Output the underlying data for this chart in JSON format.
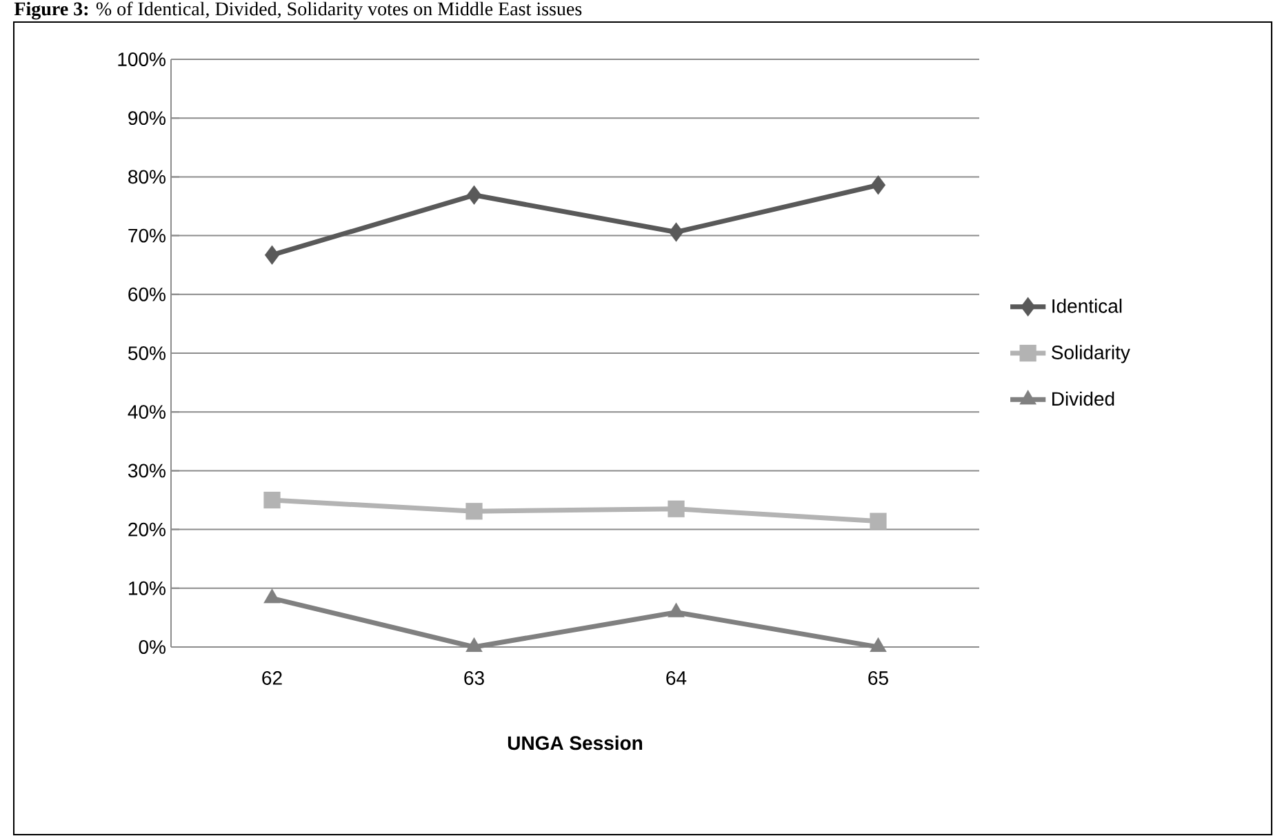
{
  "chart_data": {
    "type": "line",
    "title": "**Figure 3:** % of Identical, Divided, Solidarity votes on Middle East issues",
    "xlabel": "UNGA Session",
    "categories": [
      "62",
      "63",
      "64",
      "65"
    ],
    "series": [
      {
        "name": "Identical",
        "color": "#595959",
        "marker": "diamond",
        "values": [
          66.7,
          76.9,
          70.6,
          78.6
        ]
      },
      {
        "name": "Solidarity",
        "color": "#b3b3b3",
        "marker": "square",
        "values": [
          25.0,
          23.1,
          23.5,
          21.4
        ]
      },
      {
        "name": "Divided",
        "color": "#808080",
        "marker": "triangle",
        "values": [
          8.3,
          0,
          5.9,
          0
        ]
      }
    ],
    "ylim": [
      0,
      100
    ],
    "yticks": [
      {
        "value": 0,
        "label": "0%"
      },
      {
        "value": 10,
        "label": "10%"
      },
      {
        "value": 20,
        "label": "20%"
      },
      {
        "value": 30,
        "label": "30%"
      },
      {
        "value": 40,
        "label": "40%"
      },
      {
        "value": 50,
        "label": "50%"
      },
      {
        "value": 60,
        "label": "60%"
      },
      {
        "value": 70,
        "label": "70%"
      },
      {
        "value": 80,
        "label": "80%"
      },
      {
        "value": 90,
        "label": "90%"
      },
      {
        "value": 100,
        "label": "100%"
      }
    ],
    "grid": "y",
    "legend": "right",
    "line_style": "solid"
  }
}
